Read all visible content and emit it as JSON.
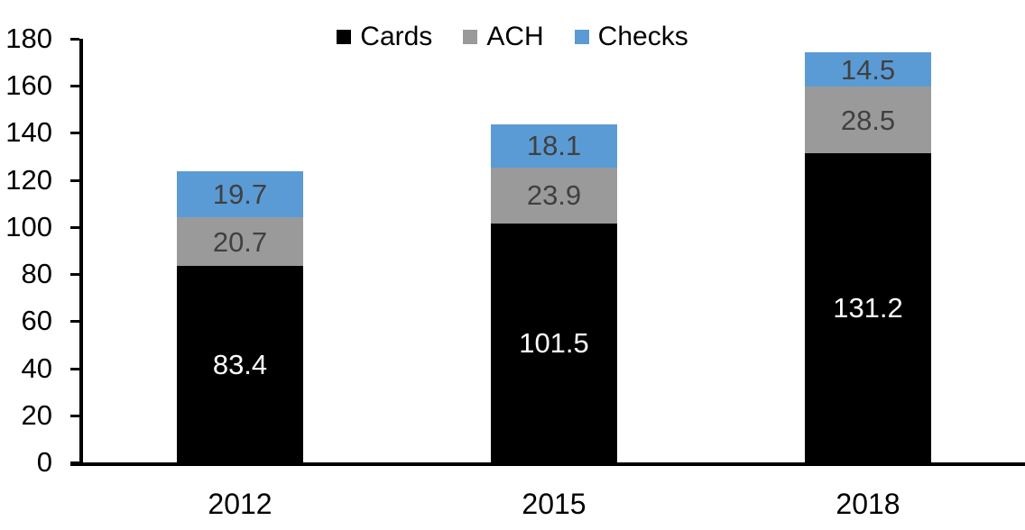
{
  "chart_data": {
    "type": "bar",
    "stacked": true,
    "title": "",
    "xlabel": "",
    "ylabel": "",
    "categories": [
      "2012",
      "2015",
      "2018"
    ],
    "series": [
      {
        "name": "Cards",
        "color": "#000000",
        "label_color": "#ffffff",
        "values": [
          83.4,
          101.5,
          131.2
        ]
      },
      {
        "name": "ACH",
        "color": "#9A9A9A",
        "label_color": "#404040",
        "values": [
          20.7,
          23.9,
          28.5
        ]
      },
      {
        "name": "Checks",
        "color": "#5B9BD5",
        "label_color": "#404040",
        "values": [
          19.7,
          18.1,
          14.5
        ]
      }
    ],
    "ylim": [
      0,
      180
    ],
    "ytick_step": 20,
    "ytick_labels": [
      "0",
      "20",
      "40",
      "60",
      "80",
      "100",
      "120",
      "140",
      "160",
      "180"
    ],
    "grid": false,
    "legend_position": "top-center",
    "axis_color": "#000000",
    "background_color": "#ffffff"
  }
}
